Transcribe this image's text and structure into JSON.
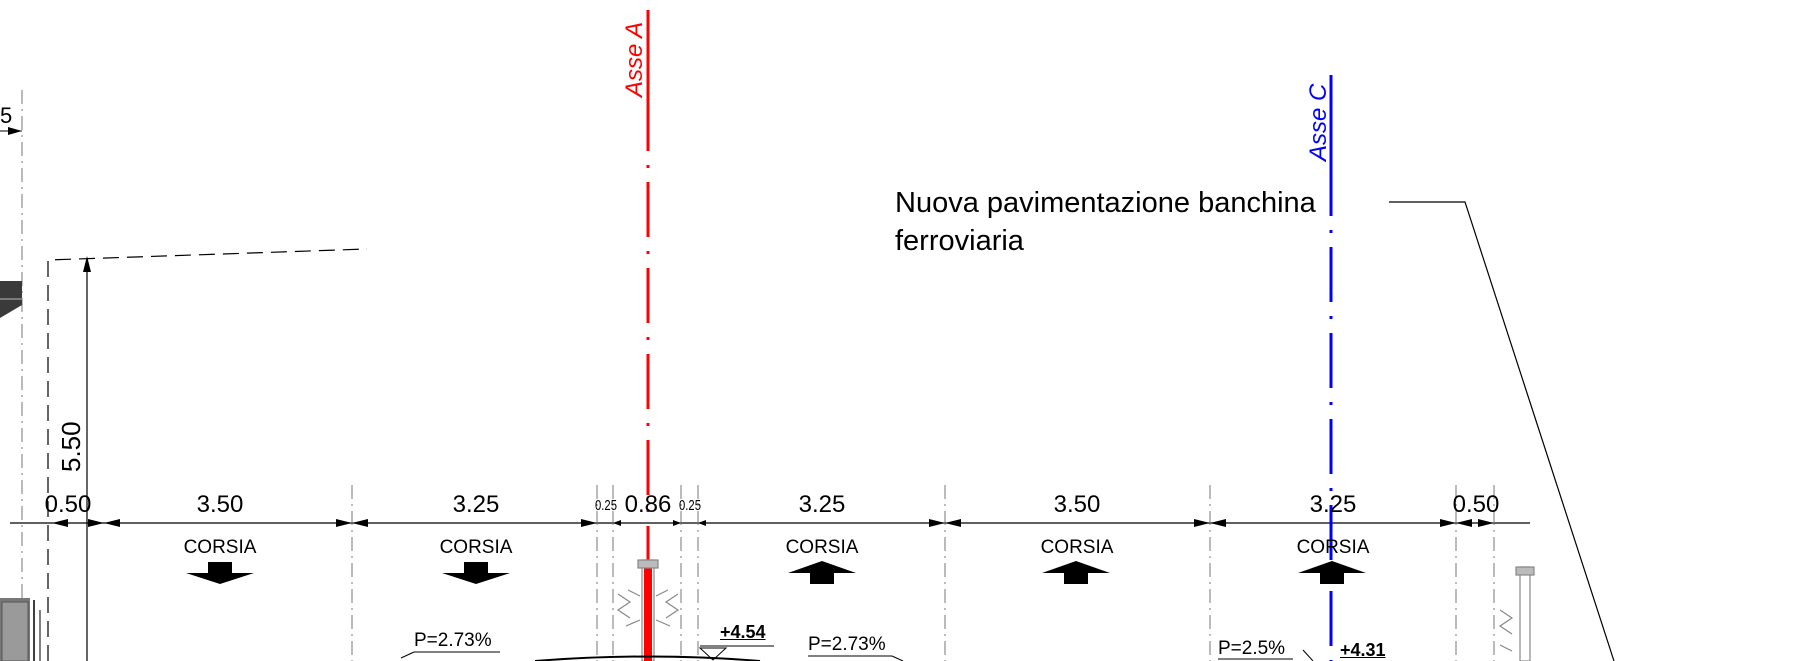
{
  "axes": {
    "axis_a": {
      "label": "Asse A",
      "color": "#ff0000"
    },
    "axis_c": {
      "label": "Asse C",
      "color": "#0000ff"
    }
  },
  "note": {
    "line1": "Nuova pavimentazione banchina",
    "line2": "ferroviaria"
  },
  "vertical_dimension": "5.50",
  "edge_fragment": "5",
  "widths": [
    "0.50",
    "3.50",
    "3.25",
    "0.25",
    "0.86",
    "0.25",
    "3.25",
    "3.50",
    "3.25",
    "0.50"
  ],
  "lane_label": "CORSIA",
  "lanes": [
    {
      "label": "CORSIA",
      "direction": "down"
    },
    {
      "label": "CORSIA",
      "direction": "down"
    },
    {
      "label": "CORSIA",
      "direction": "up"
    },
    {
      "label": "CORSIA",
      "direction": "up"
    },
    {
      "label": "CORSIA",
      "direction": "up"
    }
  ],
  "slopes": {
    "left": "P=2.73%",
    "center_right": "P=2.73%",
    "right": "P=2.5%"
  },
  "levels": {
    "center": "+4.54",
    "right": "+4.31"
  }
}
